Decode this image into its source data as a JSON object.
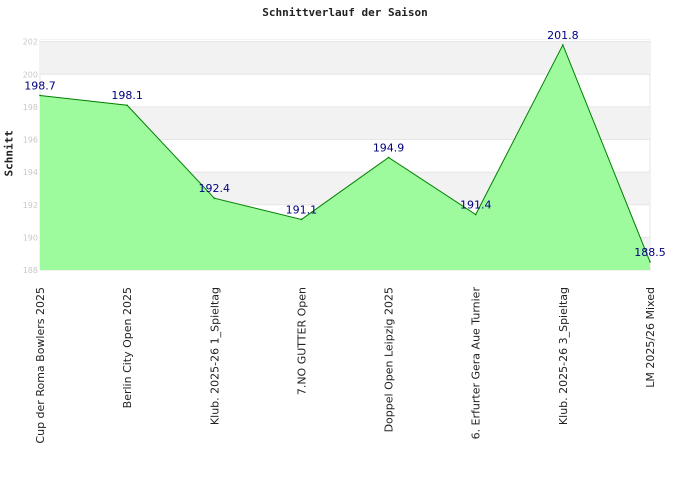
{
  "chart_data": {
    "type": "area",
    "title": "Schnittverlauf der Saison",
    "ylabel": "Schnitt",
    "xlabel": "",
    "ylim": [
      188,
      204
    ],
    "yticks": [
      188,
      190,
      192,
      194,
      196,
      198,
      200,
      202
    ],
    "grid": true,
    "categories": [
      "Cup der Roma Bowlers 2025",
      "Berlin City Open 2025",
      "Klub. 2025-26  1_Spieltag",
      "7.NO GUTTER Open",
      "Doppel Open Leipzig 2025",
      "6. Erfurter Gera Aue Turnier",
      "Klub. 2025-26  3_Spieltag",
      "LM 2025/26 Mixed"
    ],
    "values": [
      198.7,
      198.1,
      192.4,
      191.1,
      194.9,
      191.4,
      201.8,
      188.5
    ],
    "value_labels": [
      "198.7",
      "198.1",
      "192.4",
      "191.1",
      "194.9",
      "191.4",
      "201.8",
      "188.5"
    ],
    "colors": {
      "fill": "#98fb98",
      "line": "#008000",
      "labels": "#000080",
      "band": "#f2f2f2"
    }
  }
}
